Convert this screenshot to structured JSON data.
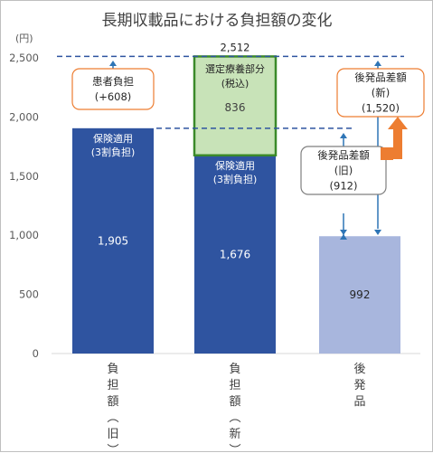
{
  "chart_data": {
    "type": "bar",
    "title": "長期収載品における負担額の変化",
    "ylabel": "(円)",
    "ylim": [
      0,
      2500
    ],
    "yticks": [
      0,
      500,
      1000,
      1500,
      2000,
      2500
    ],
    "ytick_labels": [
      "0",
      "500",
      "1,000",
      "1,500",
      "2,000",
      "2,500"
    ],
    "grid": false,
    "categories": [
      "負担額(旧)",
      "負担額(新)",
      "後発品"
    ],
    "category_labels": [
      [
        "負",
        "担",
        "額",
        "︵",
        "旧",
        "︶"
      ],
      [
        "負",
        "担",
        "額",
        "︵",
        "新",
        "︶"
      ],
      [
        "後",
        "発",
        "品"
      ]
    ],
    "series": [
      {
        "values": [
          1905,
          1676,
          992
        ],
        "labels": [
          "1,905",
          "1,676",
          "992"
        ],
        "colors": [
          "#2f54a0",
          "#2f54a0",
          "#a8b6dd"
        ]
      },
      {
        "values": [
          0,
          836,
          0
        ],
        "labels": [
          "",
          "836",
          ""
        ],
        "color": "#c8e3b8",
        "border": "#3b8a2a"
      }
    ],
    "segment_labels": [
      [
        "保険適用",
        "(3割負担)"
      ],
      [
        "保険適用",
        "(3割負担)"
      ]
    ],
    "reference_lines": [
      {
        "value": 2512,
        "label": "2,512"
      },
      {
        "value": 1905
      }
    ],
    "annotations": [
      {
        "lines": [
          "患者負担",
          "(+608)"
        ],
        "border": "#ed7d31"
      },
      {
        "lines": [
          "選定療養部分",
          "(税込)"
        ]
      },
      {
        "lines": [
          "後発品差額",
          "(新)",
          "(1,520)"
        ],
        "border": "#ed7d31"
      },
      {
        "lines": [
          "後発品差額",
          "(旧)",
          "(912)"
        ],
        "border": "#7f7f7f"
      }
    ],
    "colors": {
      "arrow": "#2e75b6",
      "dashed": "#2f54a0",
      "highlight": "#ed7d31",
      "axis": "#7f7f7f"
    }
  }
}
